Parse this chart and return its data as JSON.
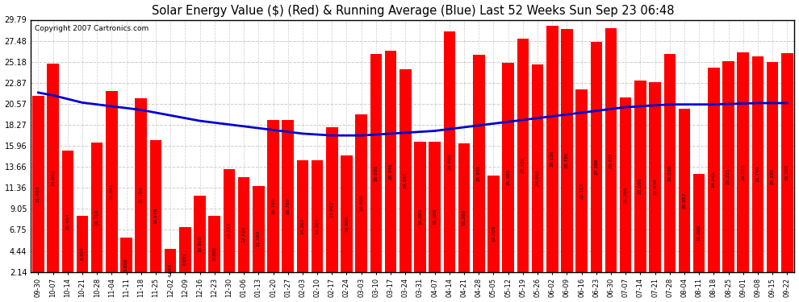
{
  "title": "Solar Energy Value ($) (Red) & Running Average (Blue) Last 52 Weeks Sun Sep 23 06:48",
  "copyright": "Copyright 2007 Cartronics.com",
  "bar_color": "#ff0000",
  "line_color": "#0000cc",
  "bg_color": "#ffffff",
  "grid_color": "#cccccc",
  "ylim": [
    2.14,
    29.79
  ],
  "yticks": [
    2.14,
    4.44,
    6.75,
    9.05,
    11.36,
    13.66,
    15.96,
    18.27,
    20.57,
    22.87,
    25.18,
    27.48,
    29.79
  ],
  "dates": [
    "09-30",
    "10-07",
    "10-14",
    "10-21",
    "10-28",
    "11-04",
    "11-11",
    "11-18",
    "11-25",
    "12-02",
    "12-09",
    "12-16",
    "12-23",
    "12-30",
    "01-06",
    "01-13",
    "01-20",
    "01-27",
    "02-03",
    "02-10",
    "02-17",
    "02-24",
    "03-03",
    "03-10",
    "03-17",
    "03-24",
    "03-31",
    "04-07",
    "04-14",
    "04-21",
    "04-28",
    "05-05",
    "05-12",
    "05-19",
    "05-26",
    "06-02",
    "06-09",
    "06-16",
    "06-23",
    "06-30",
    "07-07",
    "07-14",
    "07-21",
    "07-28",
    "08-04",
    "08-11",
    "08-18",
    "08-25",
    "09-01",
    "09-08",
    "09-15",
    "09-22"
  ],
  "bar_values": [
    21.403,
    24.982,
    15.404,
    8.304,
    16.319,
    21.941,
    5.866,
    21.194,
    16.578,
    4.693,
    7.015,
    10.505,
    8.305,
    13.377,
    12.51,
    11.563,
    18.78,
    18.78,
    14.363,
    14.363,
    17.963,
    14.9,
    19.4,
    26.031,
    26.346,
    24.345,
    16.383,
    16.389,
    28.48,
    16.269,
    25.931,
    12.705,
    25.05,
    27.705,
    24.86,
    29.136,
    28.786,
    22.113,
    27.386,
    28.831,
    21.264,
    23.095,
    22.934,
    26.03,
    20.057,
    12.868,
    24.563,
    25.225,
    26.225,
    25.74,
    25.18,
    26.1
  ],
  "avg_values": [
    21.8,
    21.5,
    21.1,
    20.7,
    20.5,
    20.3,
    20.1,
    19.9,
    19.6,
    19.3,
    19.0,
    18.7,
    18.5,
    18.3,
    18.1,
    17.9,
    17.7,
    17.5,
    17.3,
    17.2,
    17.1,
    17.1,
    17.1,
    17.2,
    17.3,
    17.4,
    17.5,
    17.6,
    17.8,
    18.0,
    18.2,
    18.4,
    18.6,
    18.8,
    19.0,
    19.2,
    19.4,
    19.6,
    19.8,
    20.0,
    20.2,
    20.3,
    20.4,
    20.5,
    20.5,
    20.5,
    20.5,
    20.55,
    20.6,
    20.65,
    20.65,
    20.65
  ]
}
